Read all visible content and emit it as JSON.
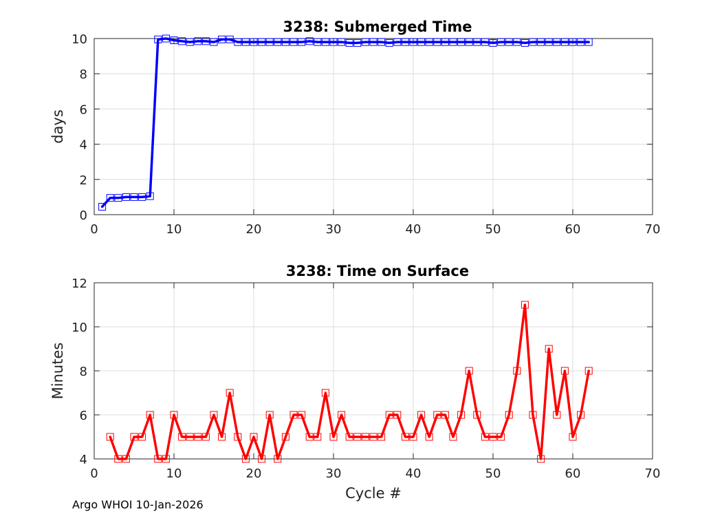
{
  "chart_data": [
    {
      "type": "line",
      "title": "3238: Submerged Time",
      "xlabel": "",
      "ylabel": "days",
      "xlim": [
        0,
        70
      ],
      "ylim": [
        0,
        10
      ],
      "xticks": [
        "0",
        "10",
        "20",
        "30",
        "40",
        "50",
        "60",
        "70"
      ],
      "yticks": [
        "0",
        "2",
        "4",
        "6",
        "8",
        "10"
      ],
      "grid": true,
      "color": "#0000ff",
      "marker": "square",
      "x": [
        1,
        2,
        3,
        4,
        5,
        6,
        7,
        8,
        9,
        10,
        11,
        12,
        13,
        14,
        15,
        16,
        17,
        18,
        19,
        20,
        21,
        22,
        23,
        24,
        25,
        26,
        27,
        28,
        29,
        30,
        31,
        32,
        33,
        34,
        35,
        36,
        37,
        38,
        39,
        40,
        41,
        42,
        43,
        44,
        45,
        46,
        47,
        48,
        49,
        50,
        51,
        52,
        53,
        54,
        55,
        56,
        57,
        58,
        59,
        60,
        61,
        62
      ],
      "values": [
        0.45,
        0.95,
        0.95,
        1.0,
        1.0,
        1.0,
        1.05,
        9.95,
        10.0,
        9.9,
        9.85,
        9.8,
        9.85,
        9.85,
        9.8,
        9.95,
        9.95,
        9.8,
        9.8,
        9.8,
        9.8,
        9.8,
        9.8,
        9.8,
        9.8,
        9.8,
        9.85,
        9.8,
        9.8,
        9.8,
        9.8,
        9.75,
        9.75,
        9.8,
        9.8,
        9.8,
        9.75,
        9.8,
        9.8,
        9.8,
        9.8,
        9.8,
        9.8,
        9.8,
        9.8,
        9.8,
        9.8,
        9.8,
        9.8,
        9.75,
        9.8,
        9.8,
        9.8,
        9.75,
        9.8,
        9.8,
        9.8,
        9.8,
        9.8,
        9.8,
        9.8,
        9.8
      ]
    },
    {
      "type": "line",
      "title": "3238: Time on Surface",
      "xlabel": "Cycle #",
      "ylabel": "Minutes",
      "xlim": [
        0,
        70
      ],
      "ylim": [
        4,
        12
      ],
      "xticks": [
        "0",
        "10",
        "20",
        "30",
        "40",
        "50",
        "60",
        "70"
      ],
      "yticks": [
        "4",
        "6",
        "8",
        "10",
        "12"
      ],
      "grid": true,
      "color": "#ff0000",
      "marker": "square",
      "x": [
        2,
        3,
        4,
        5,
        6,
        7,
        8,
        9,
        10,
        11,
        12,
        13,
        14,
        15,
        16,
        17,
        18,
        19,
        20,
        21,
        22,
        23,
        24,
        25,
        26,
        27,
        28,
        29,
        30,
        31,
        32,
        33,
        34,
        35,
        36,
        37,
        38,
        39,
        40,
        41,
        42,
        43,
        44,
        45,
        46,
        47,
        48,
        49,
        50,
        51,
        52,
        53,
        54,
        55,
        56,
        57,
        58,
        59,
        60,
        61,
        62
      ],
      "values": [
        5,
        4,
        4,
        5,
        5,
        6,
        4,
        4,
        6,
        5,
        5,
        5,
        5,
        6,
        5,
        7,
        5,
        4,
        5,
        4,
        6,
        4,
        5,
        6,
        6,
        5,
        5,
        7,
        5,
        6,
        5,
        5,
        5,
        5,
        5,
        6,
        6,
        5,
        5,
        6,
        5,
        6,
        6,
        5,
        6,
        8,
        6,
        5,
        5,
        5,
        6,
        8,
        11,
        6,
        4,
        9,
        6,
        8,
        5,
        6,
        8
      ]
    }
  ],
  "footer": {
    "credit": "Argo WHOI 10-Jan-2026"
  }
}
